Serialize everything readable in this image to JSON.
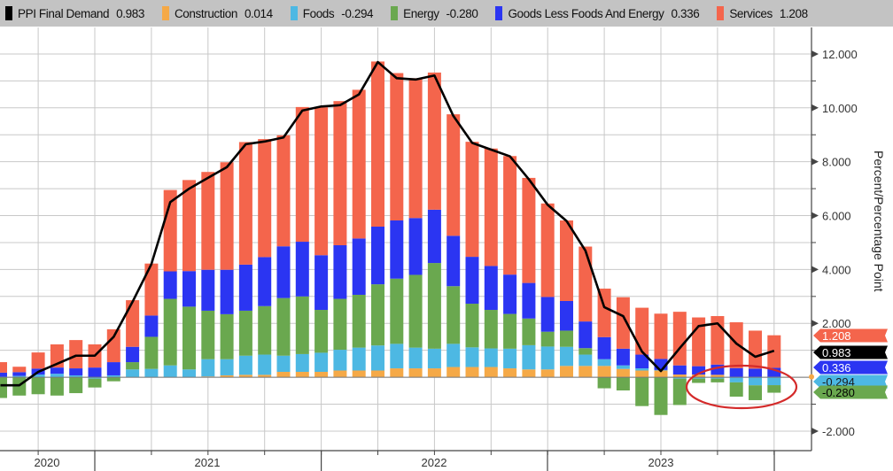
{
  "legend": [
    {
      "label": "PPI Final Demand",
      "value": "0.983",
      "color": "#000000"
    },
    {
      "label": "Construction",
      "value": "0.014",
      "color": "#f5a947"
    },
    {
      "label": "Foods",
      "value": "-0.294",
      "color": "#4db8e3"
    },
    {
      "label": "Energy",
      "value": "-0.280",
      "color": "#6aa84f"
    },
    {
      "label": "Goods Less Foods And Energy",
      "value": "0.336",
      "color": "#2b35f2"
    },
    {
      "label": "Services",
      "value": "1.208",
      "color": "#f4654c"
    }
  ],
  "chart_data": {
    "type": "bar",
    "stacked": true,
    "x": [
      "2020-07",
      "2020-08",
      "2020-09",
      "2020-10",
      "2020-11",
      "2020-12",
      "2021-01",
      "2021-02",
      "2021-03",
      "2021-04",
      "2021-05",
      "2021-06",
      "2021-07",
      "2021-08",
      "2021-09",
      "2021-10",
      "2021-11",
      "2021-12",
      "2022-01",
      "2022-02",
      "2022-03",
      "2022-04",
      "2022-05",
      "2022-06",
      "2022-07",
      "2022-08",
      "2022-09",
      "2022-10",
      "2022-11",
      "2022-12",
      "2023-01",
      "2023-02",
      "2023-03",
      "2023-04",
      "2023-05",
      "2023-06",
      "2023-07",
      "2023-08",
      "2023-09",
      "2023-10",
      "2023-11",
      "2023-12"
    ],
    "series": [
      {
        "name": "Construction",
        "color": "#f5a947",
        "values": [
          0,
          0,
          0,
          0,
          0,
          0,
          0,
          0,
          0,
          0,
          0,
          0.03,
          0.07,
          0.09,
          0.09,
          0.2,
          0.2,
          0.2,
          0.25,
          0.25,
          0.25,
          0.33,
          0.33,
          0.33,
          0.38,
          0.38,
          0.38,
          0.33,
          0.29,
          0.29,
          0.42,
          0.42,
          0.42,
          0.31,
          0.25,
          0.25,
          0.1,
          0.1,
          0.09,
          0.01,
          0.01,
          0.014
        ]
      },
      {
        "name": "Foods",
        "color": "#4db8e3",
        "values": [
          0.02,
          0.05,
          0.1,
          0.13,
          0.07,
          -0.05,
          0.07,
          0.29,
          0.31,
          0.44,
          0.29,
          0.64,
          0.6,
          0.71,
          0.75,
          0.6,
          0.66,
          0.71,
          0.77,
          0.85,
          0.93,
          0.91,
          0.77,
          0.73,
          0.86,
          0.73,
          0.69,
          0.73,
          0.9,
          0.85,
          0.71,
          0.42,
          0.25,
          0.13,
          0.08,
          0.02,
          -0.05,
          -0.05,
          -0.05,
          -0.19,
          -0.3,
          -0.294
        ]
      },
      {
        "name": "Energy",
        "color": "#6aa84f",
        "values": [
          -0.77,
          -0.68,
          -0.63,
          -0.68,
          -0.59,
          -0.33,
          -0.15,
          0.27,
          1.19,
          2.47,
          2.33,
          1.8,
          1.67,
          1.67,
          1.8,
          2.14,
          2.14,
          1.59,
          1.89,
          1.96,
          2.27,
          2.42,
          2.7,
          3.18,
          2.14,
          1.62,
          1.43,
          1.29,
          0.99,
          0.55,
          0.6,
          0.24,
          -0.41,
          -0.49,
          -1.07,
          -1.4,
          -0.98,
          -0.16,
          -0.14,
          -0.53,
          -0.55,
          -0.28
        ]
      },
      {
        "name": "Goods Less Foods And Energy",
        "color": "#2b35f2",
        "values": [
          0.15,
          0.14,
          0.22,
          0.23,
          0.26,
          0.36,
          0.49,
          0.57,
          0.79,
          1.02,
          1.32,
          1.52,
          1.65,
          1.71,
          1.82,
          1.92,
          2.03,
          2.03,
          1.99,
          2.09,
          2.14,
          2.16,
          2.11,
          1.98,
          1.87,
          1.74,
          1.63,
          1.46,
          1.32,
          1.29,
          1.1,
          0.99,
          0.82,
          0.62,
          0.51,
          0.41,
          0.34,
          0.31,
          0.38,
          0.33,
          0.31,
          0.336
        ]
      },
      {
        "name": "Services",
        "color": "#f4654c",
        "values": [
          0.39,
          0.2,
          0.6,
          0.86,
          1.05,
          0.86,
          1.22,
          1.73,
          1.93,
          3.02,
          3.38,
          3.63,
          3.99,
          4.55,
          4.38,
          4.12,
          5.0,
          5.49,
          5.35,
          5.52,
          6.13,
          5.47,
          5.19,
          5.09,
          4.51,
          4.27,
          4.36,
          4.4,
          3.9,
          3.47,
          2.99,
          2.78,
          1.8,
          1.91,
          1.74,
          1.68,
          1.99,
          1.81,
          1.8,
          1.7,
          1.41,
          1.208
        ]
      }
    ],
    "line": {
      "name": "PPI Final Demand",
      "type": "line",
      "color": "#000000",
      "values": [
        -0.3,
        -0.3,
        0.2,
        0.5,
        0.8,
        0.8,
        1.5,
        2.8,
        4.2,
        6.5,
        7.0,
        7.4,
        7.8,
        8.65,
        8.75,
        8.9,
        9.9,
        10.05,
        10.1,
        10.5,
        11.7,
        11.1,
        11.05,
        11.2,
        9.7,
        8.7,
        8.45,
        8.2,
        7.35,
        6.4,
        5.8,
        4.7,
        2.6,
        2.27,
        0.95,
        0.23,
        1.08,
        1.9,
        2.0,
        1.25,
        0.76,
        0.983
      ]
    },
    "ylabel": "Percent/Percentage Point",
    "ylim": [
      -2.6,
      12.6
    ],
    "yaxis_position": "right",
    "yticks": [
      "-2.000",
      "2.000",
      "4.000",
      "6.000",
      "8.000",
      "10.000",
      "12.000"
    ],
    "ytick_values": [
      -2,
      2,
      4,
      6,
      8,
      10,
      12
    ],
    "year_labels": [
      "2020",
      "2021",
      "2022",
      "2023"
    ],
    "grid": true,
    "legend_position": "top",
    "last_value_tags": [
      {
        "text": "1.208",
        "color": "#f4654c",
        "text_color": "#ffffff"
      },
      {
        "text": "0.983",
        "color": "#000000",
        "text_color": "#ffffff"
      },
      {
        "text": "0.336",
        "color": "#2b35f2",
        "text_color": "#ffffff"
      },
      {
        "text": "-0.294",
        "color": "#4db8e3",
        "text_color": "#1a1a1a"
      },
      {
        "text": "-0.280",
        "color": "#6aa84f",
        "text_color": "#000000"
      }
    ],
    "annotation": {
      "type": "ellipse",
      "color": "#d42a2a",
      "around": [
        "2023-08",
        "2023-12"
      ]
    }
  }
}
